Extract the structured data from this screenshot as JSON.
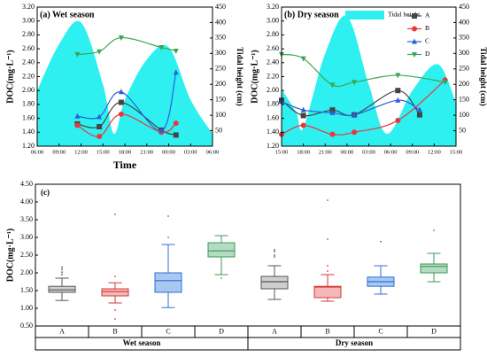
{
  "chart_data": [
    {
      "type": "line",
      "title": "(a) Wet season",
      "x_label": "Time",
      "y_label": "DOC(mg·L⁻¹)",
      "y2_label": "Tidal height (cm)",
      "xlim": [
        6,
        30
      ],
      "xticks": [
        {
          "value": 6,
          "label": "06:00"
        },
        {
          "value": 9,
          "label": "09:00"
        },
        {
          "value": 12,
          "label": "12:00"
        },
        {
          "value": 15,
          "label": "15:00"
        },
        {
          "value": 18,
          "label": "18:00"
        },
        {
          "value": 21,
          "label": "21:00"
        },
        {
          "value": 24,
          "label": "00:00"
        },
        {
          "value": 27,
          "label": "03:00"
        },
        {
          "value": 30,
          "label": "06:00"
        }
      ],
      "ylim": [
        1.2,
        3.2
      ],
      "yticks": [
        {
          "value": 1.2,
          "label": "1.20"
        },
        {
          "value": 1.4,
          "label": "1.40"
        },
        {
          "value": 1.6,
          "label": "1.60"
        },
        {
          "value": 1.8,
          "label": "1.80"
        },
        {
          "value": 2.0,
          "label": "2.00"
        },
        {
          "value": 2.2,
          "label": "2.20"
        },
        {
          "value": 2.4,
          "label": "2.40"
        },
        {
          "value": 2.6,
          "label": "2.60"
        },
        {
          "value": 2.8,
          "label": "2.80"
        },
        {
          "value": 3.0,
          "label": "3.00"
        },
        {
          "value": 3.2,
          "label": "3.20"
        }
      ],
      "y2lim": [
        0,
        450
      ],
      "y2ticks": [
        50,
        100,
        150,
        200,
        250,
        300,
        350,
        400,
        450
      ],
      "series": [
        {
          "axis": "y2",
          "color": "#2ef0f0",
          "x": [
            6,
            9,
            12,
            15,
            16.5,
            18,
            21,
            24,
            27,
            30
          ],
          "values": [
            180,
            330,
            400,
            200,
            40,
            150,
            280,
            320,
            150,
            40
          ]
        },
        {
          "color": "#444444",
          "marker": "square",
          "x": [
            11.5,
            14.5,
            17.5,
            23,
            25
          ],
          "values": [
            1.52,
            1.48,
            1.83,
            1.43,
            1.36
          ]
        },
        {
          "color": "#e8383d",
          "marker": "circle",
          "x": [
            11.5,
            14.5,
            17.5,
            23,
            25
          ],
          "values": [
            1.5,
            1.34,
            1.66,
            1.4,
            1.53
          ]
        },
        {
          "color": "#2b5fd9",
          "marker": "triangle",
          "x": [
            11.5,
            14.5,
            17.5,
            23,
            25
          ],
          "values": [
            1.63,
            1.62,
            1.98,
            1.42,
            2.26
          ]
        },
        {
          "color": "#3aa655",
          "marker": "triangle-down",
          "x": [
            11.5,
            14.5,
            17.5,
            23,
            25
          ],
          "values": [
            2.52,
            2.56,
            2.76,
            2.62,
            2.57
          ]
        }
      ]
    },
    {
      "type": "line",
      "title": "(b) Dry season",
      "y_label": "DOC(mg·L⁻¹)",
      "y2_label": "Tidal height (cm)",
      "legend": "upper right",
      "xlim": [
        15,
        39
      ],
      "xticks": [
        {
          "value": 15,
          "label": "15:00"
        },
        {
          "value": 18,
          "label": "18:00"
        },
        {
          "value": 21,
          "label": "21:00"
        },
        {
          "value": 24,
          "label": "00:00"
        },
        {
          "value": 27,
          "label": "03:00"
        },
        {
          "value": 30,
          "label": "06:00"
        },
        {
          "value": 33,
          "label": "09:00"
        },
        {
          "value": 36,
          "label": "12:00"
        },
        {
          "value": 39,
          "label": "15:00"
        }
      ],
      "ylim": [
        1.2,
        3.2
      ],
      "yticks": [
        {
          "value": 1.2,
          "label": "1.20"
        },
        {
          "value": 1.4,
          "label": "1.40"
        },
        {
          "value": 1.6,
          "label": "1.60"
        },
        {
          "value": 1.8,
          "label": "1.80"
        },
        {
          "value": 2.0,
          "label": "2.00"
        },
        {
          "value": 2.2,
          "label": "2.20"
        },
        {
          "value": 2.4,
          "label": "2.40"
        },
        {
          "value": 2.6,
          "label": "2.60"
        },
        {
          "value": 2.8,
          "label": "2.80"
        },
        {
          "value": 3.0,
          "label": "3.00"
        },
        {
          "value": 3.2,
          "label": "3.20"
        }
      ],
      "y2lim": [
        0,
        450
      ],
      "y2ticks": [
        50,
        100,
        150,
        200,
        250,
        300,
        350,
        400,
        450
      ],
      "series": [
        {
          "name": "Tidal height",
          "axis": "y2",
          "color": "#2ef0f0",
          "x": [
            15,
            17,
            18,
            21,
            24,
            27,
            29.5,
            33,
            36.5,
            39
          ],
          "values": [
            185,
            110,
            60,
            300,
            420,
            200,
            40,
            180,
            265,
            140
          ]
        },
        {
          "name": "A",
          "color": "#444444",
          "marker": "square",
          "x": [
            15,
            18,
            22,
            25,
            31,
            34
          ],
          "values": [
            1.86,
            1.64,
            1.72,
            1.65,
            2.0,
            1.65
          ]
        },
        {
          "name": "B",
          "color": "#e8383d",
          "marker": "circle",
          "x": [
            15,
            18,
            22,
            25,
            31,
            37.5
          ],
          "values": [
            1.37,
            1.5,
            1.37,
            1.4,
            1.57,
            2.15
          ]
        },
        {
          "name": "C",
          "color": "#2b5fd9",
          "marker": "triangle",
          "x": [
            15,
            18,
            22,
            25,
            31,
            34
          ],
          "values": [
            1.84,
            1.72,
            1.68,
            1.65,
            1.86,
            1.72
          ]
        },
        {
          "name": "D",
          "color": "#3aa655",
          "marker": "triangle-down",
          "x": [
            15,
            18,
            22,
            25,
            31,
            37.5
          ],
          "values": [
            2.52,
            2.46,
            2.08,
            2.12,
            2.22,
            2.12
          ]
        }
      ]
    },
    {
      "type": "box",
      "title": "(c)",
      "y_label": "DOC(mg·L⁻¹)",
      "ylim": [
        0.5,
        4.5
      ],
      "yticks": [
        {
          "value": 0.5,
          "label": "0.50"
        },
        {
          "value": 1.0,
          "label": "1.00"
        },
        {
          "value": 1.5,
          "label": "1.50"
        },
        {
          "value": 2.0,
          "label": "2.00"
        },
        {
          "value": 2.5,
          "label": "2.50"
        },
        {
          "value": 3.0,
          "label": "3.00"
        },
        {
          "value": 3.5,
          "label": "3.50"
        },
        {
          "value": 4.0,
          "label": "4.00"
        },
        {
          "value": 4.5,
          "label": "4.50"
        }
      ],
      "categories": [
        "A",
        "B",
        "C",
        "D",
        "A",
        "B",
        "C",
        "D"
      ],
      "groups": [
        "Wet season",
        "Dry season"
      ],
      "boxes": [
        {
          "color": "#555555",
          "fill": "#cfcfcf",
          "whislo": 1.22,
          "q1": 1.45,
          "med": 1.52,
          "q3": 1.62,
          "whishi": 1.85,
          "fliers": [
            1.95,
            2.02,
            2.1,
            2.16
          ]
        },
        {
          "color": "#d33a3a",
          "fill": "#f4b8b8",
          "whislo": 1.15,
          "q1": 1.35,
          "med": 1.47,
          "q3": 1.55,
          "whishi": 1.72,
          "fliers": [
            3.65,
            1.9,
            0.95,
            0.7
          ]
        },
        {
          "color": "#2b6fd9",
          "fill": "#a8c8f0",
          "whislo": 1.02,
          "q1": 1.45,
          "med": 1.78,
          "q3": 2.0,
          "whishi": 2.8,
          "fliers": [
            3.6,
            3.0
          ]
        },
        {
          "color": "#3a9a55",
          "fill": "#b4dcc2",
          "whislo": 1.95,
          "q1": 2.45,
          "med": 2.62,
          "q3": 2.85,
          "whishi": 3.05,
          "fliers": [
            1.85
          ]
        },
        {
          "color": "#555555",
          "fill": "#cfcfcf",
          "whislo": 1.25,
          "q1": 1.55,
          "med": 1.75,
          "q3": 1.9,
          "whishi": 2.2,
          "fliers": [
            2.45,
            2.5,
            2.6,
            2.65
          ]
        },
        {
          "color": "#d33a3a",
          "fill": "#f4b8b8",
          "whislo": 1.2,
          "q1": 1.3,
          "med": 1.6,
          "q3": 1.62,
          "whishi": 1.95,
          "fliers": [
            4.05,
            2.95,
            2.2,
            2.05
          ]
        },
        {
          "color": "#2b6fd9",
          "fill": "#a8c8f0",
          "whislo": 1.4,
          "q1": 1.62,
          "med": 1.75,
          "q3": 1.88,
          "whishi": 2.2,
          "fliers": [
            2.88
          ]
        },
        {
          "color": "#3a9a55",
          "fill": "#b4dcc2",
          "whislo": 1.75,
          "q1": 2.0,
          "med": 2.18,
          "q3": 2.25,
          "whishi": 2.55,
          "fliers": [
            3.2
          ]
        }
      ]
    }
  ]
}
